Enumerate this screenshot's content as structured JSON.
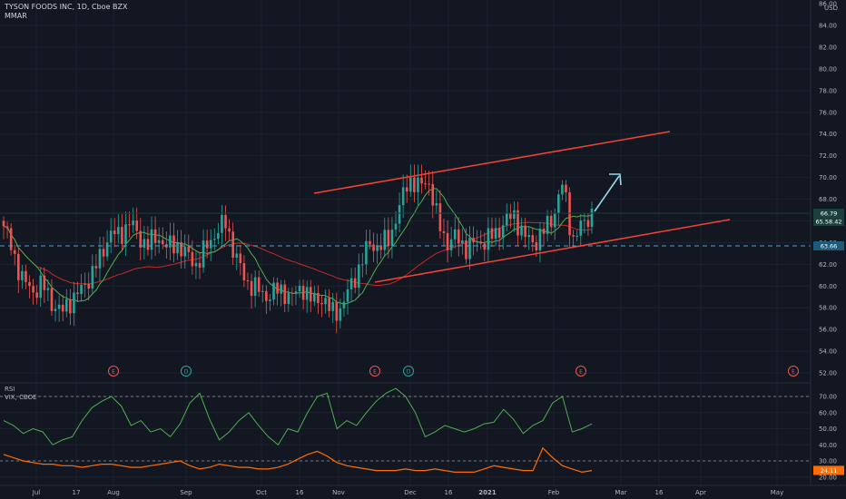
{
  "header": {
    "symbol_line": "TYSON FOODS INC, 1D, Cboe BZX",
    "indicator": "MMAR",
    "currency": "USD"
  },
  "theme": {
    "background": "#131722",
    "up_color": "#26a69a",
    "down_color": "#ef5350",
    "trendline_color": "#f44336",
    "support_line_color": "#4fa3d1",
    "arrow_color": "#8fdbe8",
    "ma_fast_color": "#4caf50",
    "ma_slow_color": "#c62828",
    "rsi_color": "#4caf50",
    "vix_color": "#ff6d00"
  },
  "chart_data": [
    {
      "type": "line",
      "subtype": "candlestick",
      "name": "TYSON FOODS INC, 1D, Cboe BZX",
      "y_axis": {
        "ticks": [
          52.0,
          54.0,
          56.0,
          58.0,
          60.0,
          62.0,
          64.0,
          66.0,
          68.0,
          70.0,
          72.0,
          74.0,
          76.0,
          78.0,
          80.0,
          82.0,
          84.0,
          86.0
        ],
        "ylim": [
          51.5,
          86.3
        ]
      },
      "x_axis": {
        "ticks": [
          "Jul",
          "17",
          "Aug",
          "Sep",
          "Oct",
          "16",
          "Nov",
          "Dec",
          "16",
          "2021",
          "Feb",
          "Mar",
          "16",
          "Apr",
          "May"
        ]
      },
      "price_tags": [
        {
          "value": "66.79",
          "color": "#1b3f3c"
        },
        {
          "value": "65.58.42",
          "color": "#1b3f3c"
        },
        {
          "value": "63.66",
          "color": "#1e5a7a"
        }
      ],
      "close_path": [
        {
          "t": "Jul",
          "close": 65.5
        },
        {
          "t": "Jul",
          "close": 63.0
        },
        {
          "t": "Jul",
          "close": 60.5
        },
        {
          "t": "Jul",
          "close": 59.5
        },
        {
          "t": "Jul",
          "close": 60.2
        },
        {
          "t": "Jul",
          "close": 58.5
        },
        {
          "t": "Jul",
          "close": 57.5
        },
        {
          "t": "17",
          "close": 58.8
        },
        {
          "t": "17",
          "close": 59.5
        },
        {
          "t": "17",
          "close": 61.0
        },
        {
          "t": "Aug",
          "close": 62.5
        },
        {
          "t": "Aug",
          "close": 65.0
        },
        {
          "t": "Aug",
          "close": 64.5
        },
        {
          "t": "Aug",
          "close": 66.0
        },
        {
          "t": "Aug",
          "close": 64.5
        },
        {
          "t": "Aug",
          "close": 63.8
        },
        {
          "t": "Aug",
          "close": 64.6
        },
        {
          "t": "Aug",
          "close": 63.5
        },
        {
          "t": "Aug",
          "close": 63.9
        },
        {
          "t": "Sep",
          "close": 62.8
        },
        {
          "t": "Sep",
          "close": 62.0
        },
        {
          "t": "Sep",
          "close": 63.5
        },
        {
          "t": "Sep",
          "close": 65.0
        },
        {
          "t": "Sep",
          "close": 65.8
        },
        {
          "t": "Sep",
          "close": 63.0
        },
        {
          "t": "Sep",
          "close": 60.5
        },
        {
          "t": "Oct",
          "close": 60.0
        },
        {
          "t": "Oct",
          "close": 59.0
        },
        {
          "t": "Oct",
          "close": 59.5
        },
        {
          "t": "Oct",
          "close": 59.5
        },
        {
          "t": "16",
          "close": 59.0
        },
        {
          "t": "16",
          "close": 60.0
        },
        {
          "t": "16",
          "close": 58.5
        },
        {
          "t": "16",
          "close": 59.0
        },
        {
          "t": "Nov",
          "close": 57.5
        },
        {
          "t": "Nov",
          "close": 58.0
        },
        {
          "t": "Nov",
          "close": 60.0
        },
        {
          "t": "Nov",
          "close": 62.0
        },
        {
          "t": "Nov",
          "close": 64.0
        },
        {
          "t": "Nov",
          "close": 63.5
        },
        {
          "t": "Nov",
          "close": 64.5
        },
        {
          "t": "Dec",
          "close": 67.0
        },
        {
          "t": "Dec",
          "close": 70.0
        },
        {
          "t": "Dec",
          "close": 69.0
        },
        {
          "t": "16",
          "close": 70.0
        },
        {
          "t": "16",
          "close": 66.0
        },
        {
          "t": "16",
          "close": 64.0
        },
        {
          "t": "16",
          "close": 64.5
        },
        {
          "t": "2021",
          "close": 63.5
        },
        {
          "t": "2021",
          "close": 64.0
        },
        {
          "t": "2021",
          "close": 64.2
        },
        {
          "t": "2021",
          "close": 64.8
        },
        {
          "t": "2021",
          "close": 66.0
        },
        {
          "t": "2021",
          "close": 66.5
        },
        {
          "t": "Feb",
          "close": 64.5
        },
        {
          "t": "Feb",
          "close": 64.0
        },
        {
          "t": "Feb",
          "close": 65.0
        },
        {
          "t": "Feb",
          "close": 66.5
        },
        {
          "t": "Feb",
          "close": 69.5
        },
        {
          "t": "Feb",
          "close": 64.2
        },
        {
          "t": "Feb",
          "close": 65.6
        },
        {
          "t": "Feb",
          "close": 66.8
        }
      ],
      "events": [
        {
          "letter": "E",
          "near": "Aug",
          "color": "#ef5350"
        },
        {
          "letter": "D",
          "near": "Sep",
          "color": "#26a69a"
        },
        {
          "letter": "E",
          "near": "Nov",
          "color": "#ef5350"
        },
        {
          "letter": "D",
          "near": "Dec",
          "color": "#26a69a"
        },
        {
          "letter": "E",
          "near": "Feb",
          "color": "#ef5350"
        },
        {
          "letter": "E",
          "near": "May",
          "color": "#ef5350"
        }
      ]
    },
    {
      "type": "line",
      "name": "RSI",
      "series": [
        {
          "name": "RSI",
          "color": "#4caf50",
          "values": [
            55,
            52,
            47,
            50,
            48,
            40,
            43,
            45,
            55,
            63,
            67,
            70,
            64,
            52,
            55,
            48,
            50,
            45,
            53,
            66,
            72,
            56,
            43,
            48,
            55,
            60,
            52,
            45,
            40,
            50,
            48,
            60,
            70,
            72,
            50,
            55,
            52,
            60,
            67,
            72,
            75,
            70,
            60,
            45,
            48,
            52,
            50,
            48,
            50,
            53,
            54,
            62,
            56,
            47,
            52,
            55,
            66,
            70,
            48,
            50,
            53
          ]
        },
        {
          "name": "VIX, CBOE",
          "color": "#ff6d00",
          "values": [
            34,
            32,
            30,
            29,
            28,
            28,
            27,
            27,
            26,
            27,
            28,
            28,
            27,
            26,
            26,
            27,
            28,
            29,
            30,
            27,
            25,
            26,
            28,
            27,
            26,
            26,
            25,
            25,
            26,
            28,
            31,
            34,
            36,
            33,
            29,
            27,
            26,
            25,
            24,
            24,
            24,
            25,
            24,
            24,
            25,
            24,
            23,
            23,
            23,
            25,
            27,
            26,
            25,
            24,
            24,
            38,
            32,
            27,
            25,
            23,
            24
          ]
        }
      ],
      "y_axis": {
        "ticks": [
          20.0,
          30.0,
          40.0,
          50.0,
          60.0,
          70.0
        ],
        "ylim": [
          18,
          76
        ]
      },
      "reference_lines": [
        70,
        30
      ],
      "value_tags": [
        {
          "value": "24.11",
          "color": "#ff6d00"
        }
      ]
    }
  ],
  "labels": {
    "rsi": "RSI",
    "vix": "VIX, CBOE"
  }
}
